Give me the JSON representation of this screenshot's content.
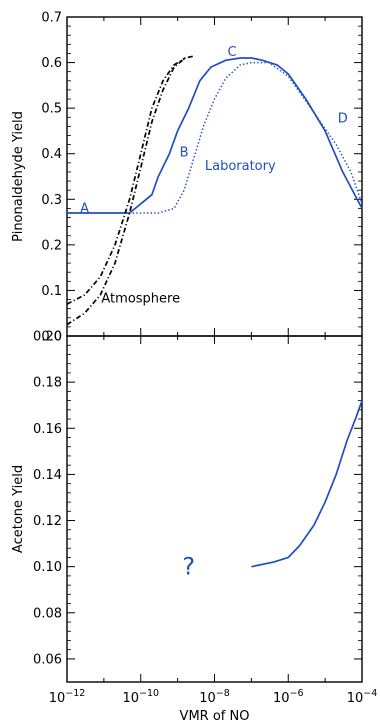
{
  "chart_data": [
    {
      "type": "line",
      "panel": "top",
      "ylabel": "Pinonaldehyde Yield",
      "xscale": "log",
      "xlim": [
        1e-12,
        0.0001
      ],
      "ylim": [
        0,
        0.7
      ],
      "yticks": [
        0.0,
        0.1,
        0.2,
        0.3,
        0.4,
        0.5,
        0.6,
        0.7
      ],
      "ytick_labels": [
        "0.0",
        "0.1",
        "0.2",
        "0.3",
        "0.4",
        "0.5",
        "0.6",
        "0.7"
      ],
      "grid": false,
      "series": [
        {
          "style": "solid",
          "color": "#1f4fbf",
          "points": [
            [
              1e-12,
              0.27
            ],
            [
              5e-11,
              0.27
            ],
            [
              1e-10,
              0.29
            ],
            [
              2e-10,
              0.31
            ],
            [
              3e-10,
              0.35
            ],
            [
              6e-10,
              0.4
            ],
            [
              1e-09,
              0.45
            ],
            [
              2e-09,
              0.5
            ],
            [
              4e-09,
              0.56
            ],
            [
              8e-09,
              0.59
            ],
            [
              2e-08,
              0.605
            ],
            [
              5e-08,
              0.61
            ],
            [
              1e-07,
              0.61
            ],
            [
              2e-07,
              0.605
            ],
            [
              5e-07,
              0.595
            ],
            [
              1e-06,
              0.575
            ],
            [
              3e-06,
              0.52
            ],
            [
              1e-05,
              0.45
            ],
            [
              3e-05,
              0.36
            ],
            [
              0.0001,
              0.28
            ]
          ]
        },
        {
          "style": "dotted",
          "color": "#1f4fbf",
          "points": [
            [
              6e-11,
              0.27
            ],
            [
              1e-10,
              0.27
            ],
            [
              3e-10,
              0.27
            ],
            [
              8e-10,
              0.28
            ],
            [
              1.5e-09,
              0.32
            ],
            [
              3e-09,
              0.4
            ],
            [
              5e-09,
              0.46
            ],
            [
              1e-08,
              0.52
            ],
            [
              2e-08,
              0.565
            ],
            [
              5e-08,
              0.595
            ],
            [
              1e-07,
              0.6
            ],
            [
              3e-07,
              0.6
            ],
            [
              1e-06,
              0.57
            ],
            [
              5e-06,
              0.49
            ],
            [
              2e-05,
              0.42
            ],
            [
              5e-05,
              0.36
            ],
            [
              0.0001,
              0.29
            ]
          ]
        },
        {
          "style": "dash-dot",
          "color": "#000000",
          "points": [
            [
              1e-12,
              0.07
            ],
            [
              3e-12,
              0.09
            ],
            [
              8e-12,
              0.13
            ],
            [
              2e-11,
              0.2
            ],
            [
              5e-11,
              0.3
            ],
            [
              1e-10,
              0.4
            ],
            [
              2e-10,
              0.5
            ],
            [
              4e-10,
              0.56
            ],
            [
              8e-10,
              0.595
            ],
            [
              1.6e-09,
              0.61
            ]
          ]
        },
        {
          "style": "dash-dot",
          "color": "#000000",
          "points": [
            [
              1e-12,
              0.025
            ],
            [
              3e-12,
              0.05
            ],
            [
              8e-12,
              0.09
            ],
            [
              2e-11,
              0.16
            ],
            [
              5e-11,
              0.27
            ],
            [
              1e-10,
              0.37
            ],
            [
              2e-10,
              0.47
            ],
            [
              4e-10,
              0.54
            ],
            [
              8e-10,
              0.59
            ],
            [
              1.6e-09,
              0.61
            ],
            [
              3e-09,
              0.615
            ]
          ]
        }
      ],
      "annotations": [
        {
          "text": "A",
          "x": 3e-12,
          "y": 0.282,
          "color": "#1f4fbf"
        },
        {
          "text": "B",
          "x": 1.5e-09,
          "y": 0.405,
          "color": "#1f4fbf"
        },
        {
          "text": "C",
          "x": 3e-08,
          "y": 0.625,
          "color": "#1f4fbf"
        },
        {
          "text": "D",
          "x": 3e-05,
          "y": 0.48,
          "color": "#1f4fbf"
        },
        {
          "text": "Laboratory",
          "x": 5e-08,
          "y": 0.375,
          "color": "#1f4fbf"
        },
        {
          "text": "Atmosphere",
          "x": 1e-10,
          "y": 0.085,
          "color": "#000000"
        }
      ]
    },
    {
      "type": "line",
      "panel": "bottom",
      "ylabel": "Acetone Yield",
      "xlabel": "VMR of NO",
      "xscale": "log",
      "xlim": [
        1e-12,
        0.0001
      ],
      "ylim": [
        0.05,
        0.2
      ],
      "yticks": [
        0.06,
        0.08,
        0.1,
        0.12,
        0.14,
        0.16,
        0.18,
        0.2
      ],
      "ytick_labels": [
        "0.06",
        "0.08",
        "0.10",
        "0.12",
        "0.14",
        "0.16",
        "0.18",
        "0.20"
      ],
      "xticks": [
        1e-12,
        1e-10,
        1e-08,
        1e-06,
        0.0001
      ],
      "xtick_labels": [
        {
          "base": "10",
          "exp": "−12"
        },
        {
          "base": "10",
          "exp": "−10"
        },
        {
          "base": "10",
          "exp": "−8"
        },
        {
          "base": "10",
          "exp": "−6"
        },
        {
          "base": "10",
          "exp": "−4"
        }
      ],
      "grid": false,
      "series": [
        {
          "style": "solid",
          "color": "#1f4fbf",
          "points": [
            [
              1e-07,
              0.1
            ],
            [
              4e-07,
              0.102
            ],
            [
              1e-06,
              0.104
            ],
            [
              2e-06,
              0.109
            ],
            [
              5e-06,
              0.118
            ],
            [
              1e-05,
              0.128
            ],
            [
              2e-05,
              0.14
            ],
            [
              4e-05,
              0.155
            ],
            [
              7e-05,
              0.165
            ],
            [
              0.0001,
              0.172
            ]
          ]
        }
      ],
      "annotations": [
        {
          "text": "?",
          "x": 2e-09,
          "y": 0.1,
          "color": "#1f4fbf"
        }
      ]
    }
  ]
}
